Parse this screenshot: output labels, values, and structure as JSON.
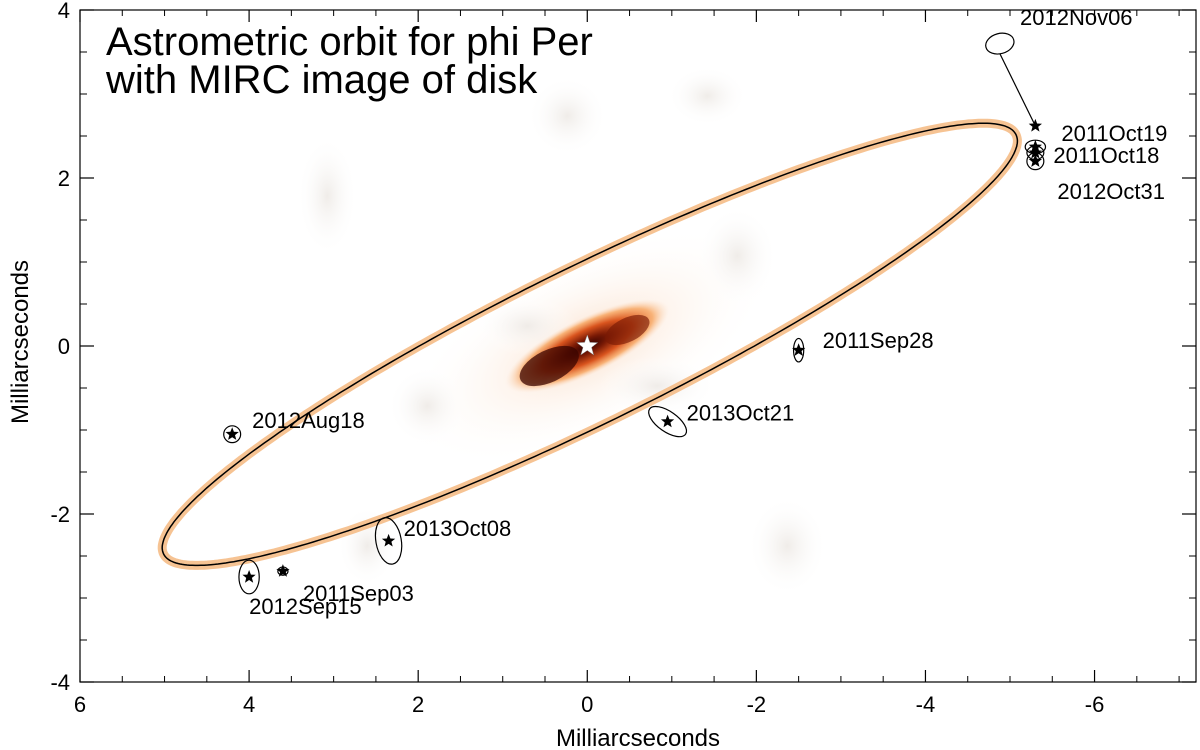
{
  "chart_data": {
    "type": "scatter",
    "title": "Astrometric orbit for phi Per",
    "subtitle": "with MIRC image of disk",
    "xlabel": "Milliarcseconds",
    "ylabel": "Milliarcseconds",
    "xlim": [
      6,
      -7.2
    ],
    "ylim": [
      -4,
      4
    ],
    "x_ticks": [
      6,
      4,
      2,
      0,
      -2,
      -4,
      -6
    ],
    "y_ticks": [
      4,
      2,
      0,
      -2,
      -4
    ],
    "x_tick_labels": [
      "6",
      "4",
      "2",
      "0",
      "-2",
      "-4",
      "-6"
    ],
    "y_tick_labels": [
      "4",
      "2",
      "0",
      "-2",
      "-4"
    ],
    "grid": false,
    "central_star": {
      "x": 0,
      "y": 0
    },
    "orbit_colors": {
      "band": "#f5b880",
      "line": "#000000"
    },
    "disk_colormap": [
      "#ffffff",
      "#fde0c8",
      "#f7a35c",
      "#d9541e",
      "#7a1a05",
      "#300000"
    ],
    "epochs": [
      {
        "label": "2011Sep03",
        "x": 3.6,
        "y": -2.68,
        "err": {
          "a": 0.06,
          "b": 0.05,
          "pa": 0
        }
      },
      {
        "label": "2011Sep28",
        "x": -2.5,
        "y": -0.05,
        "err": {
          "a": 0.06,
          "b": 0.14,
          "pa": 0
        }
      },
      {
        "label": "2011Oct18",
        "x": -5.3,
        "y": 2.3,
        "err": {
          "a": 0.1,
          "b": 0.08,
          "pa": 0
        }
      },
      {
        "label": "2011Oct19",
        "x": -5.3,
        "y": 2.37,
        "err": {
          "a": 0.12,
          "b": 0.08,
          "pa": 0
        }
      },
      {
        "label": "2012Aug18",
        "x": 4.2,
        "y": -1.05,
        "err": {
          "a": 0.1,
          "b": 0.1,
          "pa": 0
        }
      },
      {
        "label": "2012Sep15",
        "x": 4.0,
        "y": -2.75,
        "err": {
          "a": 0.12,
          "b": 0.2,
          "pa": 0
        }
      },
      {
        "label": "2012Oct31",
        "x": -5.3,
        "y": 2.2,
        "err": {
          "a": 0.1,
          "b": 0.1,
          "pa": 0
        }
      },
      {
        "label": "2012Nov06",
        "x": -5.3,
        "y": 2.62,
        "err": {
          "a": 0.17,
          "b": 0.12,
          "pa": 0
        }
      },
      {
        "label": "2013Oct08",
        "x": 2.35,
        "y": -2.32,
        "err": {
          "a": 0.15,
          "b": 0.28,
          "pa": -10
        }
      },
      {
        "label": "2013Oct21",
        "x": -0.95,
        "y": -0.9,
        "err": {
          "a": 0.26,
          "b": 0.12,
          "pa": 35
        }
      }
    ],
    "nov06_offset_point": {
      "x": -4.88,
      "y": 3.6
    }
  }
}
